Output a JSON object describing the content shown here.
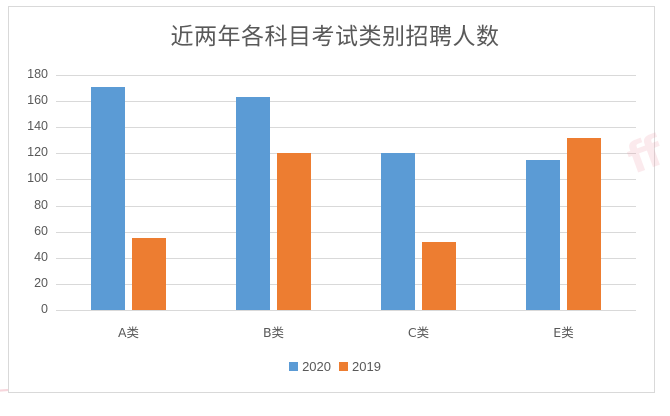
{
  "chart_data": {
    "type": "bar",
    "title": "近两年各科目考试类别招聘人数",
    "categories": [
      "A类",
      "B类",
      "C类",
      "E类"
    ],
    "series": [
      {
        "name": "2020",
        "color": "#5b9bd5",
        "values": [
          171,
          163,
          120,
          115
        ]
      },
      {
        "name": "2019",
        "color": "#ed7d31",
        "values": [
          55,
          120,
          52,
          132
        ]
      }
    ],
    "xlabel": "",
    "ylabel": "",
    "ylim": [
      0,
      180
    ],
    "yticks": [
      "0",
      "20",
      "40",
      "60",
      "80",
      "100",
      "120",
      "140",
      "160",
      "180"
    ],
    "grid": true,
    "legend_position": "bottom"
  }
}
